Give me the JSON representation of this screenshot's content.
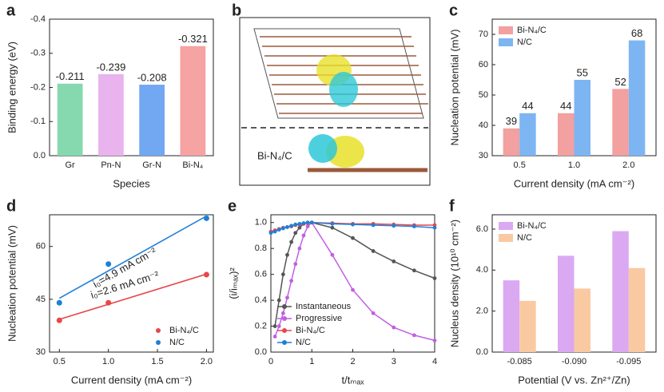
{
  "chart_data": [
    {
      "type": "bar",
      "label": "a",
      "xlabel": "Species",
      "ylabel": "Binding energy (eV)",
      "categories": [
        "Gr",
        "Pn-N",
        "Gr-N",
        "Bi-N₄"
      ],
      "values": [
        -0.211,
        -0.239,
        -0.208,
        -0.321
      ],
      "colors": [
        "#86d9ae",
        "#e9b3ee",
        "#72a7f2",
        "#f5a3a3"
      ],
      "ylim": [
        0,
        -0.4
      ],
      "yticks": [
        {
          "value": 0,
          "label": "0.0"
        },
        -0.1,
        -0.2,
        -0.3,
        -0.4
      ]
    },
    {
      "type": "image",
      "label": "b",
      "annotation": "Bi-N₄/C"
    },
    {
      "type": "grouped_bar",
      "label": "c",
      "xlabel": "Current density (mA cm⁻²)",
      "ylabel": "Nucleation potential (mV)",
      "categories": [
        "0.5",
        "1.0",
        "2.0"
      ],
      "series": [
        {
          "name": "Bi-N₄/C",
          "color": "#f2a0a0",
          "values": [
            39,
            44,
            52
          ]
        },
        {
          "name": "N/C",
          "color": "#7db5f2",
          "values": [
            44,
            55,
            68
          ]
        }
      ],
      "value_labels_shown": true,
      "legend": "top-left",
      "ylim": [
        30,
        75
      ],
      "yticks": [
        30,
        40,
        50,
        60,
        70
      ]
    },
    {
      "type": "scatter",
      "label": "d",
      "xlabel": "Current density (mA cm⁻²)",
      "ylabel": "Nucleation potential (mV)",
      "x": [
        0.5,
        1.0,
        2.0
      ],
      "series": [
        {
          "name": "Bi-N₄/C",
          "color": "#e8474a",
          "values": [
            39,
            44,
            52
          ]
        },
        {
          "name": "N/C",
          "color": "#1f7fd8",
          "values": [
            44,
            55,
            68
          ]
        }
      ],
      "annotations": [
        {
          "text": "i₀=2.6 mA cm⁻²",
          "color": "#1f7fd8"
        },
        {
          "text": "i₀=4.9 mA cm⁻²",
          "color": "#e8474a"
        }
      ],
      "legend": "bottom-right",
      "xlim": [
        0.4,
        2.07
      ],
      "xticks": [
        0.5,
        {
          "value": 1,
          "label": "1.0"
        },
        1.5,
        {
          "value": 2,
          "label": "2.0"
        }
      ],
      "ylim": [
        30,
        69
      ],
      "yticks": [
        30,
        45,
        60
      ]
    },
    {
      "type": "line",
      "label": "e",
      "xlabel": "t/tₘₐₓ",
      "ylabel": "(i/iₘₐₓ)²",
      "x": [
        0,
        0.1,
        0.2,
        0.3,
        0.4,
        0.5,
        0.6,
        0.7,
        0.8,
        0.9,
        1.0,
        1.5,
        2.0,
        2.5,
        3.0,
        3.5,
        4.0
      ],
      "series": [
        {
          "name": "Instantaneous",
          "color": "#555555",
          "values": [
            null,
            0.2,
            0.4,
            0.6,
            0.75,
            0.85,
            0.92,
            0.96,
            0.99,
            1.0,
            1.0,
            0.96,
            0.88,
            0.78,
            0.7,
            0.63,
            0.57
          ]
        },
        {
          "name": "Progressive",
          "color": "#c060e0",
          "values": [
            null,
            0.12,
            0.2,
            0.3,
            0.42,
            0.55,
            0.68,
            0.8,
            0.9,
            0.97,
            1.0,
            0.75,
            0.48,
            0.3,
            0.19,
            0.13,
            0.09
          ]
        },
        {
          "name": "Bi-N₄/C",
          "color": "#e8474a",
          "values": [
            0.93,
            0.94,
            0.95,
            0.96,
            0.965,
            0.97,
            0.98,
            0.985,
            0.99,
            0.995,
            1.0,
            0.995,
            0.99,
            0.99,
            0.985,
            0.98,
            0.98
          ]
        },
        {
          "name": "N/C",
          "color": "#1f7fd8",
          "values": [
            0.92,
            0.93,
            0.945,
            0.955,
            0.965,
            0.975,
            0.985,
            0.99,
            0.995,
            1.0,
            1.0,
            0.99,
            0.985,
            0.98,
            0.975,
            0.97,
            0.96
          ]
        }
      ],
      "legend": "bottom-left",
      "xlim": [
        0,
        4
      ],
      "xticks": [
        0,
        1,
        2,
        3,
        4
      ],
      "ylim": [
        0,
        1.06
      ],
      "yticks": [
        {
          "value": 0,
          "label": "0.0"
        },
        0.2,
        0.4,
        0.6,
        0.8,
        {
          "value": 1,
          "label": "1.0"
        }
      ]
    },
    {
      "type": "grouped_bar",
      "label": "f",
      "xlabel": "Potential (V vs. Zn²⁺/Zn)",
      "ylabel": "Nucleus density (10¹⁰ cm⁻²)",
      "categories": [
        "-0.085",
        "-0.090",
        "-0.095"
      ],
      "series": [
        {
          "name": "Bi-N₄/C",
          "color": "#dba9f2",
          "values": [
            3.5,
            4.7,
            5.9
          ]
        },
        {
          "name": "N/C",
          "color": "#f9c9a2",
          "values": [
            2.5,
            3.1,
            4.1
          ]
        }
      ],
      "legend": "top-left",
      "ylim": [
        0,
        6.7
      ],
      "yticks": [
        {
          "value": 0,
          "label": "0.0"
        },
        {
          "value": 2,
          "label": "2.0"
        },
        {
          "value": 4,
          "label": "4.0"
        },
        {
          "value": 6,
          "label": "6.0"
        }
      ]
    }
  ]
}
